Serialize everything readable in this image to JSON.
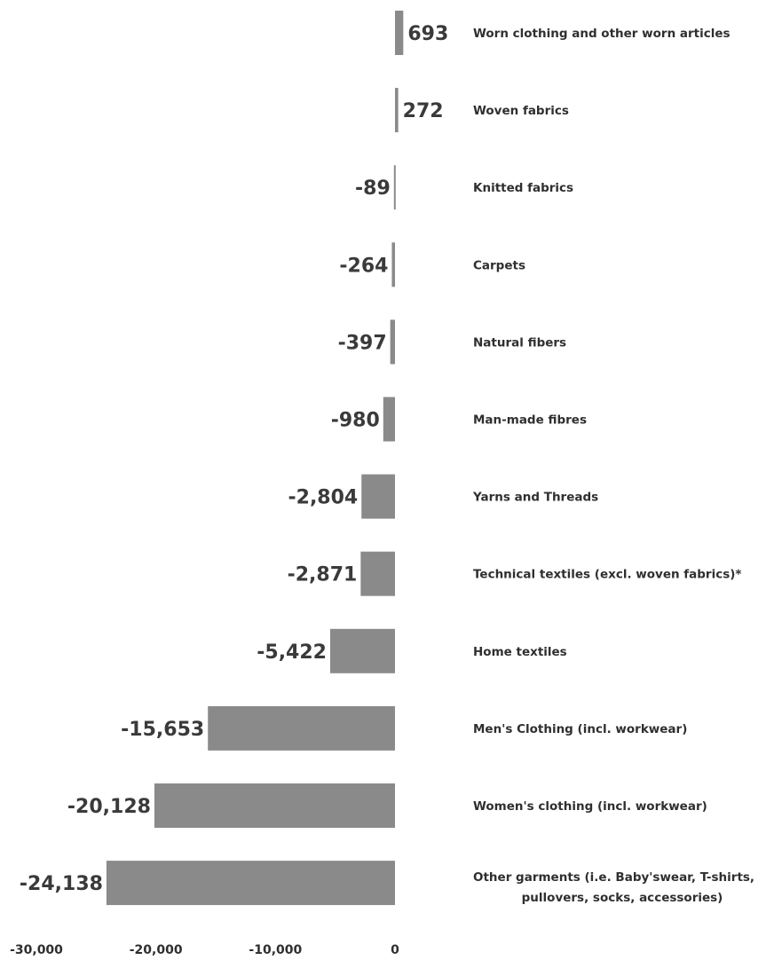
{
  "chart_data": {
    "type": "bar",
    "orientation": "horizontal",
    "categories": [
      "Worn clothing and other worn articles",
      "Woven fabrics",
      "Knitted fabrics",
      "Carpets",
      "Natural fibers",
      "Man-made fibres",
      "Yarns and Threads",
      "Technical textiles (excl. woven fabrics)*",
      "Home textiles",
      "Men's Clothing (incl. workwear)",
      "Women's clothing (incl. workwear)",
      [
        "Other garments (i.e. Baby'swear, T-shirts,",
        "pullovers, socks, accessories)"
      ]
    ],
    "values": [
      693,
      272,
      -89,
      -264,
      -397,
      -980,
      -2804,
      -2871,
      -5422,
      -15653,
      -20128,
      -24138
    ],
    "value_labels": [
      "693",
      "272",
      "-89",
      "-264",
      "-397",
      "-980",
      "-2,804",
      "-2,871",
      "-5,422",
      "-15,653",
      "-20,128",
      "-24,138"
    ],
    "x_ticks": [
      "-30,000",
      "-20,000",
      "-10,000",
      "0"
    ],
    "x_tick_values": [
      -30000,
      -20000,
      -10000,
      0
    ],
    "xlim": [
      -30000,
      0
    ],
    "grid": false,
    "legend": "none",
    "bar_color": "#8a8a8a"
  }
}
